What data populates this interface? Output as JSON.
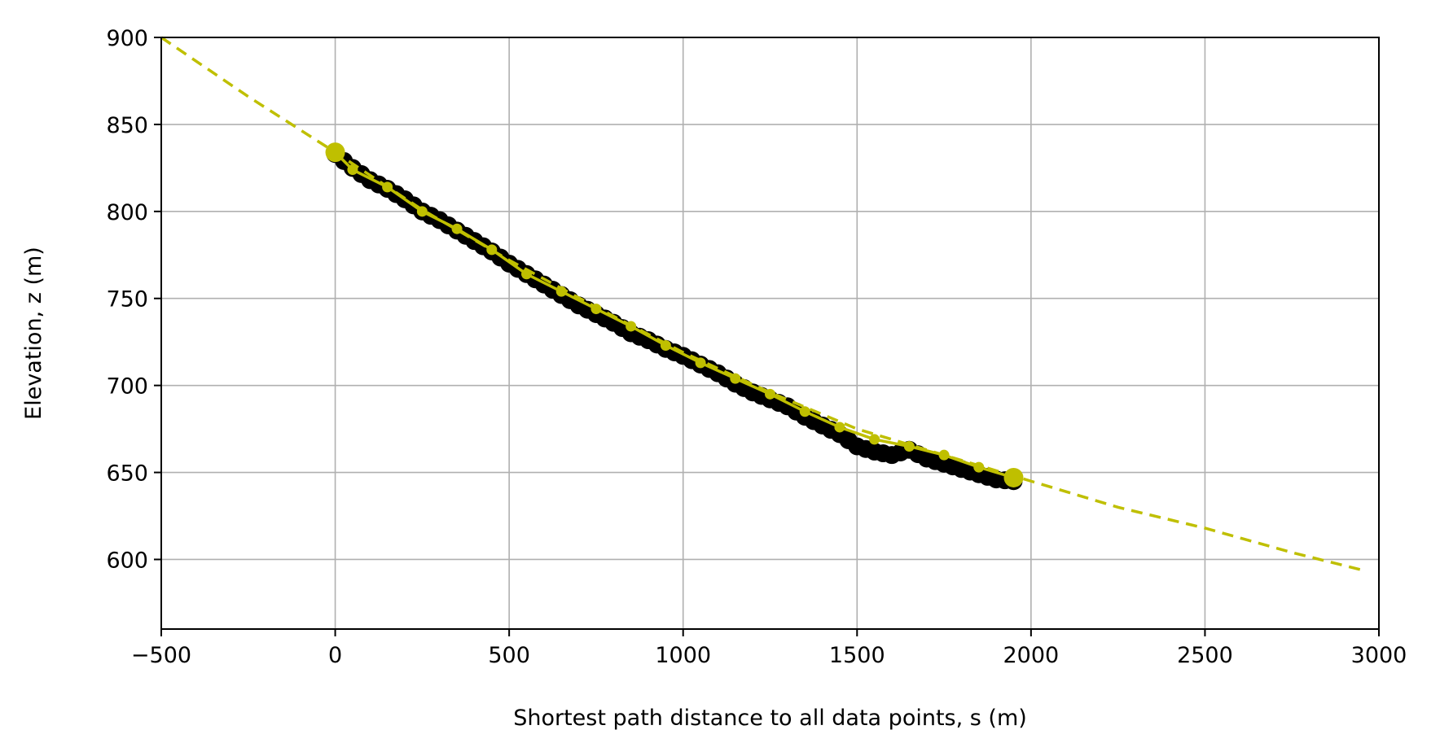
{
  "chart_data": {
    "type": "line",
    "title": "",
    "xlabel": "Shortest path distance to all data points, s (m)",
    "ylabel": "Elevation, z (m)",
    "xlim": [
      -500,
      3000
    ],
    "ylim": [
      560,
      900
    ],
    "x_ticks": [
      -500,
      0,
      500,
      1000,
      1500,
      2000,
      2500,
      3000
    ],
    "x_tick_labels": [
      "−500",
      "0",
      "500",
      "1000",
      "1500",
      "2000",
      "2500",
      "3000"
    ],
    "y_ticks": [
      600,
      650,
      700,
      750,
      800,
      850,
      900
    ],
    "y_tick_labels": [
      "600",
      "650",
      "700",
      "750",
      "800",
      "850",
      "900"
    ],
    "grid": true,
    "legend": "none",
    "colors": {
      "fit": "#bfbf00",
      "data": "#000000"
    },
    "series": [
      {
        "kind": "data-points",
        "style": "black markers",
        "points": [
          [
            0,
            833
          ],
          [
            50,
            825
          ],
          [
            100,
            818
          ],
          [
            150,
            813
          ],
          [
            200,
            807
          ],
          [
            250,
            800
          ],
          [
            300,
            795
          ],
          [
            350,
            789
          ],
          [
            400,
            783
          ],
          [
            450,
            777
          ],
          [
            500,
            770
          ],
          [
            550,
            764
          ],
          [
            600,
            758
          ],
          [
            650,
            752
          ],
          [
            700,
            746
          ],
          [
            750,
            741
          ],
          [
            800,
            736
          ],
          [
            850,
            730
          ],
          [
            900,
            726
          ],
          [
            950,
            721
          ],
          [
            1000,
            717
          ],
          [
            1050,
            712
          ],
          [
            1100,
            707
          ],
          [
            1150,
            701
          ],
          [
            1200,
            696
          ],
          [
            1250,
            692
          ],
          [
            1300,
            688
          ],
          [
            1350,
            682
          ],
          [
            1400,
            677
          ],
          [
            1450,
            672
          ],
          [
            1500,
            665
          ],
          [
            1550,
            662
          ],
          [
            1600,
            660
          ],
          [
            1650,
            663
          ],
          [
            1700,
            658
          ],
          [
            1750,
            655
          ],
          [
            1800,
            652
          ],
          [
            1850,
            649
          ],
          [
            1900,
            646
          ],
          [
            1950,
            645
          ]
        ]
      },
      {
        "kind": "extrapolated-fit",
        "style": "dashed",
        "points": [
          [
            -500,
            900
          ],
          [
            -250,
            866
          ],
          [
            0,
            834
          ],
          [
            250,
            801
          ],
          [
            500,
            772
          ],
          [
            750,
            745
          ],
          [
            1000,
            719
          ],
          [
            1250,
            696
          ],
          [
            1500,
            675
          ],
          [
            1750,
            660
          ],
          [
            2000,
            645
          ],
          [
            2250,
            630
          ],
          [
            2500,
            618
          ],
          [
            2750,
            604
          ],
          [
            2950,
            594
          ]
        ]
      },
      {
        "kind": "fitted-profile",
        "style": "solid line with markers",
        "points": [
          [
            0,
            834
          ],
          [
            50,
            824
          ],
          [
            150,
            814
          ],
          [
            250,
            800
          ],
          [
            350,
            790
          ],
          [
            450,
            778
          ],
          [
            550,
            764
          ],
          [
            650,
            754
          ],
          [
            750,
            744
          ],
          [
            850,
            734
          ],
          [
            950,
            723
          ],
          [
            1050,
            713
          ],
          [
            1150,
            704
          ],
          [
            1250,
            695
          ],
          [
            1350,
            685
          ],
          [
            1450,
            676
          ],
          [
            1550,
            669
          ],
          [
            1650,
            665
          ],
          [
            1750,
            660
          ],
          [
            1850,
            653
          ],
          [
            1950,
            647
          ]
        ],
        "endpoints": [
          [
            0,
            834
          ],
          [
            1950,
            647
          ]
        ]
      }
    ]
  }
}
